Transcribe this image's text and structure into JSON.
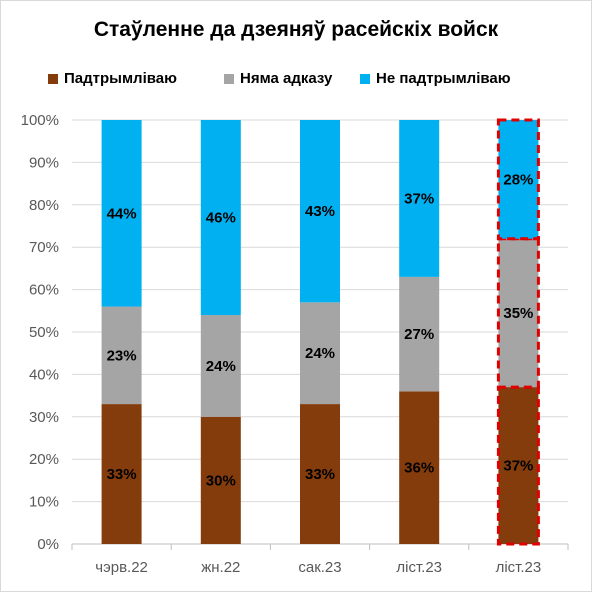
{
  "chart_data": {
    "type": "bar",
    "stacked": true,
    "title": "Стаўленне да дзеяняў расейскіх войск",
    "categories": [
      "чэрв.22",
      "жн.22",
      "сак.23",
      "ліст.23",
      "ліст.23"
    ],
    "series": [
      {
        "name": "Падтрымліваю",
        "color": "#843c0c",
        "values": [
          33,
          30,
          33,
          36,
          37
        ],
        "labels": [
          "33%",
          "30%",
          "33%",
          "36%",
          "37%"
        ]
      },
      {
        "name": "Няма адказу",
        "color": "#a5a5a5",
        "values": [
          23,
          24,
          24,
          27,
          35
        ],
        "labels": [
          "23%",
          "24%",
          "24%",
          "27%",
          "35%"
        ]
      },
      {
        "name": "Не падтрымліваю",
        "color": "#00b0f0",
        "values": [
          44,
          46,
          43,
          37,
          28
        ],
        "labels": [
          "44%",
          "46%",
          "43%",
          "37%",
          "28%"
        ]
      }
    ],
    "ylim": [
      0,
      100
    ],
    "yticks": [
      "0%",
      "10%",
      "20%",
      "30%",
      "40%",
      "50%",
      "60%",
      "70%",
      "80%",
      "90%",
      "100%"
    ],
    "highlighted_category_index": 4,
    "highlight_color": "#e00000",
    "gridlines": true,
    "legend_position": "top"
  }
}
